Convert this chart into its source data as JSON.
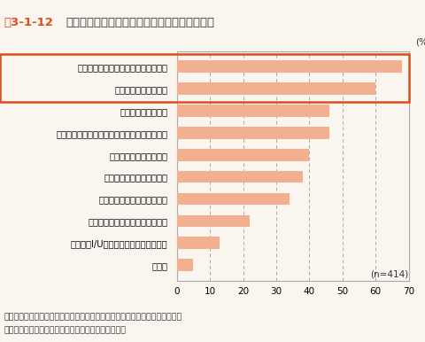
{
  "fig_label": "図3-1-12",
  "fig_title": "自治体が地域の再エネ事業に期待する地域貢献",
  "categories": [
    "地域のエネルギーを地域で調達できる",
    "地域の防災対策になる",
    "地域の雇用を増やす",
    "地域の事業者の新しいビジネスチャンスになる",
    "地域の新たな産業となる",
    "地域全体の発展につながる",
    "資金の地域内循環につながる",
    "地域の農林漁業者の副収入になる",
    "地域へのI/Uターン者の増加につながる",
    "その他"
  ],
  "values": [
    68,
    60,
    46,
    46,
    40,
    38,
    34,
    22,
    13,
    5
  ],
  "bar_color": "#F2B090",
  "highlight_box_color": "#D94F1E",
  "highlight_indices": [
    0,
    1
  ],
  "xlim": [
    0,
    70
  ],
  "xticks": [
    0,
    10,
    20,
    30,
    40,
    50,
    60,
    70
  ],
  "n_label": "(n=414)",
  "source_line1": "資料：一般社団法人創発的地域づくり・連携推進センターなど「再生可能エネ",
  "source_line2": "　　　ルギー導入の実態と自治体意向調査」より作成",
  "background_color": "#FAF5EF",
  "grid_color": "#AAAAAA",
  "spine_color": "#AAAAAA",
  "label_color_highlight": "#D94F1E",
  "text_color": "#333333",
  "bar_height": 0.55,
  "title_fontsize": 9.5,
  "cat_fontsize": 7.2,
  "tick_fontsize": 7.5,
  "source_fontsize": 6.8
}
